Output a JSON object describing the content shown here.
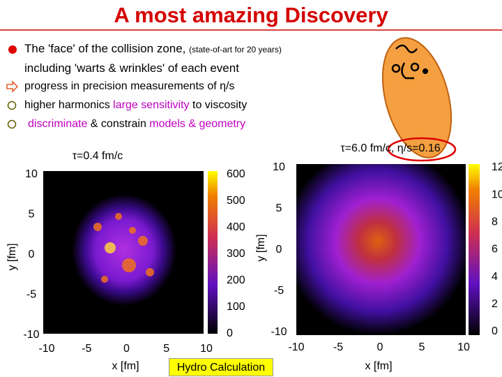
{
  "header": {
    "title": "A most amazing Discovery"
  },
  "bullets": [
    {
      "text": "The 'face' of the collision zone, ",
      "note": "(state-of-art for 20 years)",
      "line2": "including 'warts & wrinkles' of each event"
    },
    {
      "text": "progress in precision measurements of η/s"
    },
    {
      "parts": [
        "higher harmonics ",
        "large sensitivity",
        " to viscosity"
      ]
    },
    {
      "parts": [
        "discriminate",
        " & constrain ",
        "models & geometry"
      ]
    }
  ],
  "panels": [
    {
      "label": "τ=0.4 fm/c",
      "ylabel": "y [fm]",
      "xlabel": "x [fm]",
      "yticks": [
        "10",
        "5",
        "0",
        "-5",
        "-10"
      ],
      "xticks": [
        "-10",
        "-5",
        "0",
        "5",
        "10"
      ],
      "colorbar": [
        "600",
        "500",
        "400",
        "300",
        "200",
        "100",
        "0"
      ]
    },
    {
      "label": "τ=6.0 fm/c, η/s=0.16",
      "ylabel": "y [fm]",
      "xlabel": "x [fm]",
      "yticks": [
        "10",
        "5",
        "0",
        "-5",
        "-10"
      ],
      "xticks": [
        "-10",
        "-5",
        "0",
        "5",
        "10"
      ],
      "colorbar": [
        "12",
        "10",
        "8",
        "6",
        "4",
        "2",
        "0"
      ]
    }
  ],
  "footer": {
    "label": "Hydro Calculation"
  }
}
